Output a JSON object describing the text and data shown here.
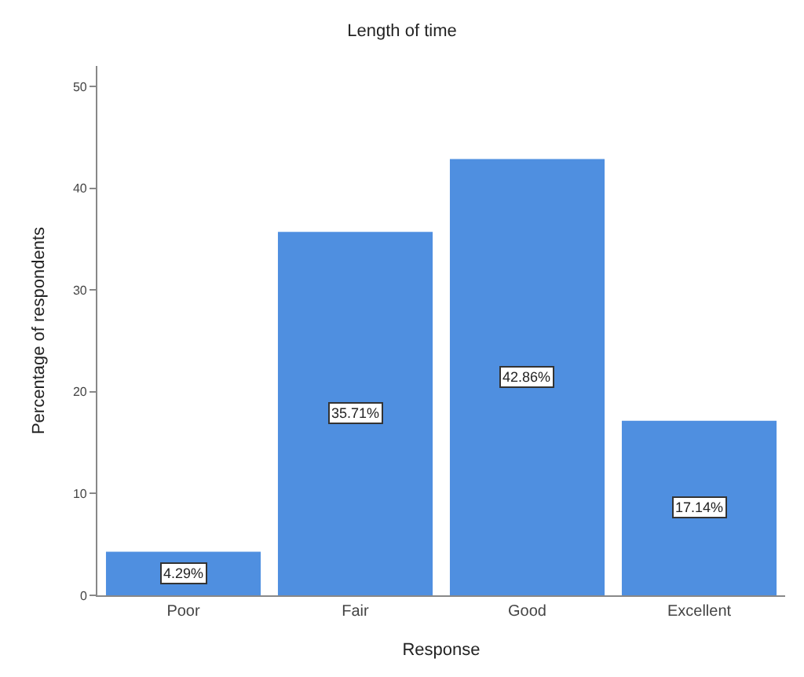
{
  "chart_data": {
    "type": "bar",
    "title": "Length of time",
    "xlabel": "Response",
    "ylabel": "Percentage of respondents",
    "categories": [
      "Poor",
      "Fair",
      "Good",
      "Excellent"
    ],
    "values": [
      4.29,
      35.71,
      42.86,
      17.14
    ],
    "value_labels": [
      "4.29%",
      "35.71%",
      "42.86%",
      "17.14%"
    ],
    "color": "#4f8fe0",
    "ylim": [
      0,
      52
    ],
    "yticks": [
      0,
      10,
      20,
      30,
      40,
      50
    ],
    "legend": false
  }
}
